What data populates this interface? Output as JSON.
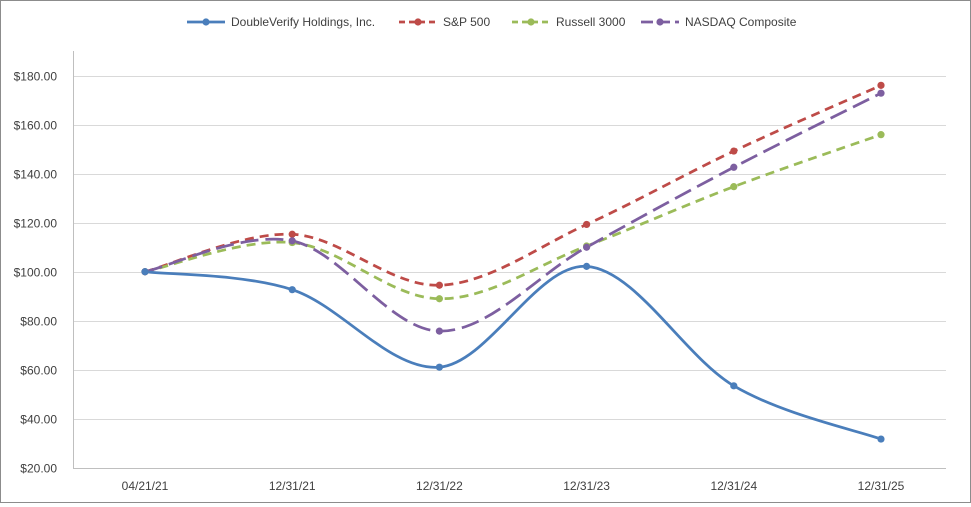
{
  "chart_data": {
    "type": "line",
    "title": "",
    "xlabel": "",
    "ylabel": "",
    "categories": [
      "04/21/21",
      "12/31/21",
      "12/31/22",
      "12/31/23",
      "12/31/24",
      "12/31/25"
    ],
    "ylim": [
      20,
      190
    ],
    "y_ticks": [
      20,
      40,
      60,
      80,
      100,
      120,
      140,
      160,
      180
    ],
    "y_tick_labels": [
      "$20.00",
      "$40.00",
      "$60.00",
      "$80.00",
      "$100.00",
      "$120.00",
      "$140.00",
      "$160.00",
      "$180.00"
    ],
    "grid": "horizontal",
    "legend_position": "top",
    "series": [
      {
        "name": "DoubleVerify Holdings, Inc.",
        "values": [
          100,
          92.7,
          61.1,
          102.2,
          53.5,
          31.8
        ],
        "color": "#4a7ebb",
        "dash": "solid"
      },
      {
        "name": "S&P 500",
        "values": [
          100,
          115.3,
          94.5,
          119.3,
          149.2,
          176.0
        ],
        "color": "#be4b48",
        "dash": "dashed"
      },
      {
        "name": "Russell 3000",
        "values": [
          100,
          111.9,
          89.0,
          110.5,
          134.7,
          155.9
        ],
        "color": "#9bbb59",
        "dash": "dashed"
      },
      {
        "name": "NASDAQ Composite",
        "values": [
          100,
          112.6,
          75.8,
          110.0,
          142.6,
          172.8
        ],
        "color": "#7d5fa0",
        "dash": "longdash"
      }
    ]
  }
}
